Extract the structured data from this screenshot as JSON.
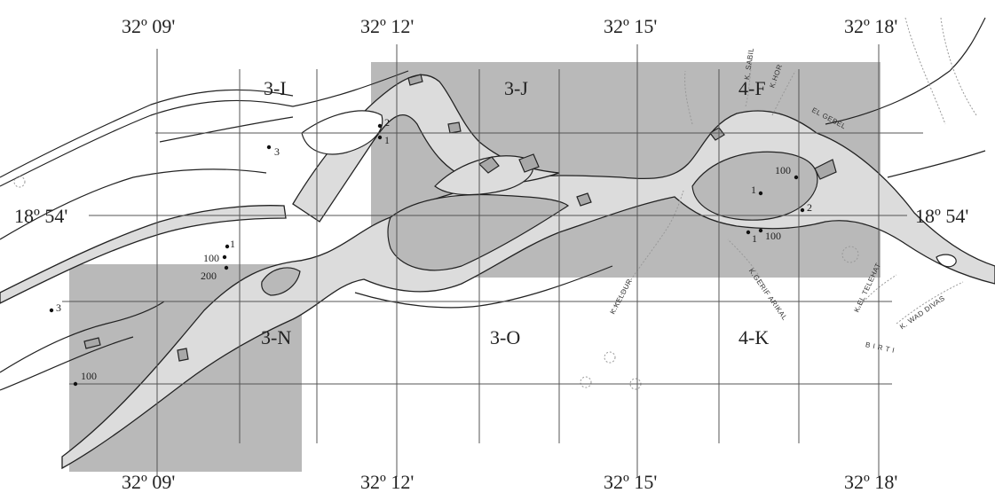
{
  "colors": {
    "shaded_block": "#b9b9b9",
    "river_fill": "#dcdcdc",
    "island_fill": "#a8a8a8",
    "line": "#222222",
    "grid_line": "#555555"
  },
  "longitudes": {
    "top": [
      "32º 09'",
      "32º 12'",
      "32º 15'",
      "32º 18'"
    ],
    "bottom": [
      "32º 09'",
      "32º 12'",
      "32º 15'",
      "32º 18'"
    ]
  },
  "latitudes": {
    "left": "18º 54'",
    "right": "18º 54'"
  },
  "sections": [
    "3-I",
    "3-J",
    "4-F",
    "3-N",
    "3-O",
    "4-K"
  ],
  "site_labels": {
    "s3i_3": "3",
    "s3j_2": "2",
    "s3j_1": "1",
    "s3n_1": "1",
    "s3n_100": "100",
    "s3n_200": "200",
    "s3n_3": "3",
    "s3n_100b": "100",
    "s4f_100": "100",
    "s4f_1": "1",
    "s4f_2": "2",
    "s4f_1b": "1",
    "s4f_100b": "100"
  },
  "place_names": {
    "k_sabil": "K. SABIL",
    "k_hor": "K.HOR",
    "el_gebel": "EL  GEBEL",
    "k_keldur": "K.KELDUR",
    "k_gerif_arikal": "K.GERIF ARIKAL",
    "k_el_telehat": "K.EL TELEHAT",
    "k_wad_divas": "K. WAD DIVAS",
    "birti": "B I R T I"
  }
}
